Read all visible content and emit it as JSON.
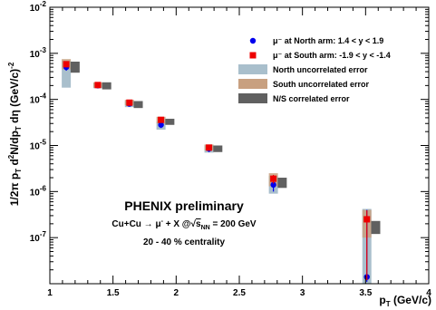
{
  "chart_data": {
    "type": "scatter",
    "xlabel": "p_T (GeV/c)",
    "ylabel": "1/2π p_T d²N/dp_T dη (GeV/c)^-2",
    "xlim": [
      1,
      4
    ],
    "ylim": [
      1e-08,
      0.01
    ],
    "y_scale": "log",
    "x_ticks": [
      "1",
      "1.5",
      "2",
      "2.5",
      "3",
      "3.5",
      "4"
    ],
    "y_ticks": [
      "10^-2",
      "10^-3",
      "10^-4",
      "10^-5",
      "10^-6",
      "10^-7"
    ],
    "legend_position": "top-right",
    "series": [
      {
        "name": "μ⁻ at North arm: 1.4 < y < 1.9",
        "marker": "circle",
        "color": "#0000ee",
        "x": [
          1.13,
          1.38,
          1.63,
          1.88,
          2.26,
          2.77,
          3.51
        ],
        "y": [
          0.0005,
          0.0002,
          8e-05,
          2.8e-05,
          8.5e-06,
          1.4e-06,
          1.4e-08
        ],
        "stat_low": [
          0.00042,
          0.000185,
          7.2e-05,
          2.4e-05,
          7.2e-06,
          1e-06,
          1.1e-08
        ],
        "stat_high": [
          0.00058,
          0.000215,
          8.8e-05,
          3.2e-05,
          9.8e-06,
          1.8e-06,
          4e-07
        ]
      },
      {
        "name": "μ⁻ at South arm: -1.9 < y < -1.4",
        "marker": "square",
        "color": "#ee0000",
        "x": [
          1.13,
          1.38,
          1.63,
          1.88,
          2.26,
          2.77,
          3.51
        ],
        "y": [
          0.00058,
          0.000205,
          8.5e-05,
          3.6e-05,
          9e-06,
          1.9e-06,
          2.5e-07
        ],
        "stat_low": [
          0.00052,
          0.000195,
          7.9e-05,
          3.2e-05,
          8.2e-06,
          1.5e-06,
          1.2e-08
        ],
        "stat_high": [
          0.00064,
          0.000215,
          9.1e-05,
          4e-05,
          9.8e-06,
          2.3e-06,
          3.9e-07
        ]
      }
    ],
    "error_bands": [
      {
        "name": "North uncorrelated error",
        "color": "#a9bfcc",
        "x": [
          1.13,
          1.38,
          1.63,
          1.88,
          2.26,
          2.77,
          3.51
        ],
        "low": [
          0.00018,
          0.000175,
          6.8e-05,
          2.2e-05,
          7e-06,
          9e-07,
          1e-08
        ],
        "high": [
          0.0007,
          0.000225,
          9.2e-05,
          3.3e-05,
          1e-05,
          2.2e-06,
          4.2e-07
        ]
      },
      {
        "name": "South uncorrelated error",
        "color": "#c8a080",
        "x": [
          1.13,
          1.38,
          1.63,
          1.88,
          2.26,
          2.77,
          3.51
        ],
        "low": [
          0.00045,
          0.00018,
          7.5e-05,
          3e-05,
          7.8e-06,
          1.3e-06,
          1e-07
        ],
        "high": [
          0.00075,
          0.000235,
          9.8e-05,
          4.2e-05,
          1.05e-05,
          2.5e-06,
          4e-07
        ]
      },
      {
        "name": "N/S correlated error",
        "color": "#606060",
        "x": [
          1.2,
          1.45,
          1.7,
          1.95,
          2.33,
          2.84,
          3.58
        ],
        "low": [
          0.00038,
          0.000165,
          6.5e-05,
          2.8e-05,
          7.2e-06,
          1.2e-06,
          1.2e-07
        ],
        "high": [
          0.00066,
          0.000235,
          9.2e-05,
          3.8e-05,
          1e-05,
          2e-06,
          2.3e-07
        ]
      }
    ],
    "annotations": {
      "title": "PHENIX preliminary",
      "subtitle": "Cu+Cu → μ⁻ + X @√s_NN = 200 GeV",
      "centrality": "20 - 40 % centrality"
    }
  }
}
